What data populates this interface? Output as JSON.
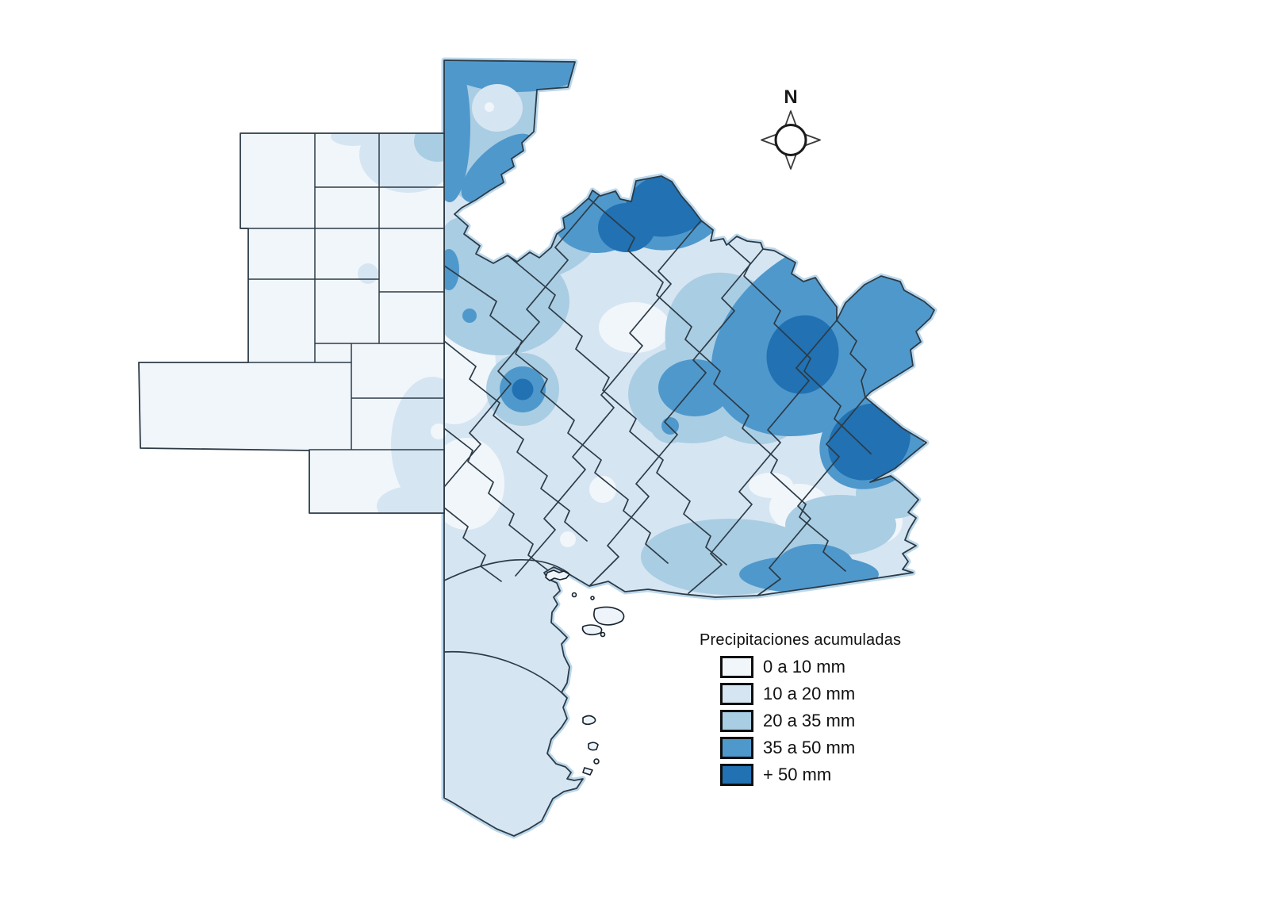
{
  "map": {
    "type": "choropleth-precipitation-map",
    "compass": {
      "label": "N"
    },
    "legend": {
      "title": "Precipitaciones acumuladas",
      "items": [
        {
          "label": "0 a 10 mm",
          "color": "#F1F6FB"
        },
        {
          "label": "10 a 20 mm",
          "color": "#D6E5F2"
        },
        {
          "label": "20 a 35 mm",
          "color": "#A9CDE3"
        },
        {
          "label": "35 a 50 mm",
          "color": "#4F98CC"
        },
        {
          "label": "+ 50 mm",
          "color": "#2171B3"
        }
      ]
    },
    "colors": {
      "boundary": "#2c3b46",
      "coastline": "#16222c",
      "halo": "#bcd8ec",
      "background": "#ffffff"
    }
  }
}
